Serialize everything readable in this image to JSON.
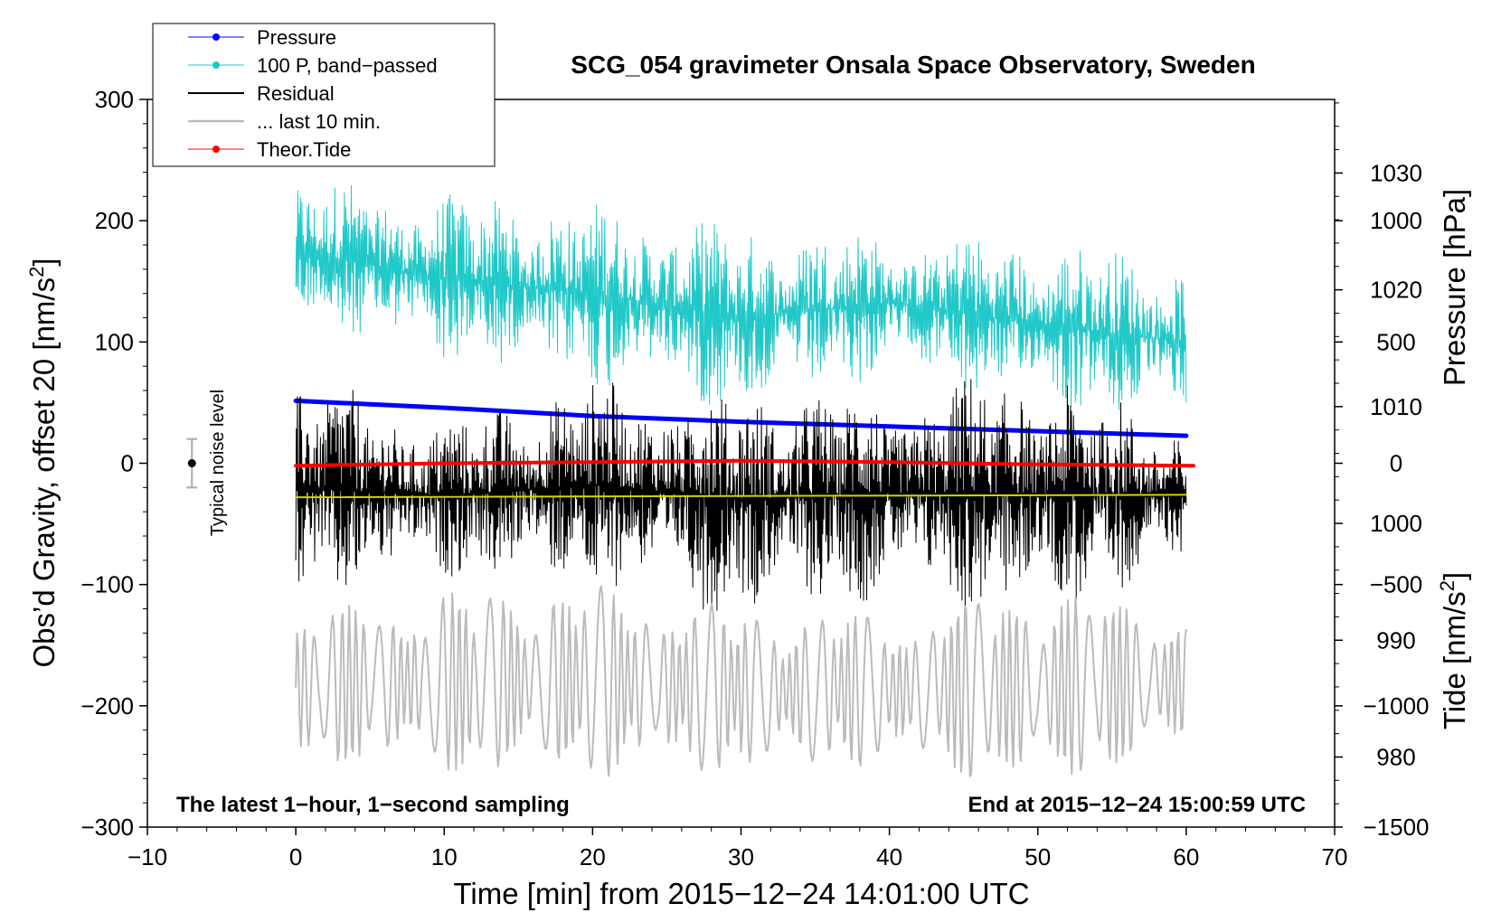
{
  "chart_data": {
    "type": "line",
    "title": "SCG_054 gravimeter Onsala Space Observatory, Sweden",
    "xlabel": "Time [min] from 2015−12−24 14:01:00 UTC",
    "ylabel_left": "Obs’d Gravity, offset 20 [nm/s",
    "ylabel_left_sup": "2",
    "ylabel_left_end": "]",
    "ylabel_right_pressure": "Pressure [hPa]",
    "ylabel_right_tide": "Tide [nm/s",
    "ylabel_right_tide_sup": "2",
    "ylabel_right_tide_end": "]",
    "xlim": [
      -10,
      70
    ],
    "ylim": [
      -300,
      300
    ],
    "pressure_ylim": [
      974,
      1036.3
    ],
    "tide_ylim": [
      -1500,
      1500
    ],
    "x_ticks": [
      -10,
      0,
      10,
      20,
      30,
      40,
      50,
      60,
      70
    ],
    "x_tick_labels": [
      "−10",
      "0",
      "10",
      "20",
      "30",
      "40",
      "50",
      "60",
      "70"
    ],
    "y_ticks": [
      300,
      200,
      100,
      0,
      -100,
      -200,
      -300
    ],
    "y_tick_labels": [
      "300",
      "200",
      "100",
      "0",
      "−100",
      "−200",
      "−300"
    ],
    "pressure_ticks": [
      1030,
      1020,
      1010,
      1000,
      990,
      980
    ],
    "pressure_tick_labels": [
      "1030",
      "1020",
      "1010",
      "1000",
      "990",
      "980"
    ],
    "tide_ticks": [
      1000,
      500,
      0,
      -500,
      -1000,
      -1500
    ],
    "tide_tick_labels": [
      "1000",
      "500",
      "0",
      "−500",
      "−1000",
      "−1500"
    ],
    "annotation_left": "The latest 1−hour, 1−second sampling",
    "annotation_right": "End at 2015−12−24 15:00:59 UTC",
    "noise_label": "Typical noise level",
    "noise_bar": {
      "x": -7,
      "center": 0,
      "low": -20,
      "high": 20
    },
    "legend": [
      {
        "label": "Pressure",
        "color": "#0000ff",
        "marker": true
      },
      {
        "label": "100 P, band−passed",
        "color": "#20c8c8",
        "marker": true
      },
      {
        "label": "Residual",
        "color": "#000000",
        "marker": false
      },
      {
        "label": "... last 10 min.",
        "color": "#bbbbbb",
        "marker": false
      },
      {
        "label": "Theor.Tide",
        "color": "#ff0000",
        "marker": true
      }
    ],
    "series": [
      {
        "name": "Pressure",
        "axis": "pressure",
        "color": "#0000ff",
        "x": [
          0,
          10,
          20,
          30,
          40,
          50,
          60
        ],
        "values": [
          1010.5,
          1009.9,
          1009.2,
          1008.7,
          1008.3,
          1007.9,
          1007.5
        ]
      },
      {
        "name": "100 P, band-passed",
        "axis": "left",
        "color": "#20c8c8",
        "envelope_x": [
          0,
          10,
          20,
          30,
          40,
          50,
          60
        ],
        "envelope_high": [
          240,
          225,
          220,
          200,
          195,
          190,
          170
        ],
        "envelope_low": [
          110,
          80,
          60,
          40,
          70,
          40,
          30
        ]
      },
      {
        "name": "Residual",
        "axis": "left",
        "color": "#000000",
        "envelope_x": [
          0,
          10,
          20,
          30,
          40,
          50,
          60
        ],
        "envelope_high": [
          80,
          40,
          75,
          70,
          65,
          85,
          35
        ],
        "envelope_low": [
          -120,
          -95,
          -110,
          -130,
          -115,
          -135,
          -90
        ]
      },
      {
        "name": "Residual mean",
        "axis": "left",
        "color": "#d4d400",
        "x": [
          0,
          60
        ],
        "values": [
          -28,
          -26
        ]
      },
      {
        "name": "... last 10 min.",
        "axis": "left",
        "color": "#bbbbbb",
        "envelope_x": [
          0,
          10,
          20,
          30,
          40,
          50,
          60
        ],
        "envelope_high": [
          -120,
          -100,
          -95,
          -115,
          -120,
          -95,
          -120
        ],
        "envelope_low": [
          -250,
          -260,
          -265,
          -260,
          -255,
          -275,
          -240
        ]
      },
      {
        "name": "Theor.Tide",
        "axis": "tide",
        "color": "#ff0000",
        "x": [
          0,
          10,
          20,
          30,
          40,
          50,
          60.5
        ],
        "values": [
          -10,
          0,
          5,
          10,
          5,
          -5,
          -10
        ]
      }
    ]
  }
}
